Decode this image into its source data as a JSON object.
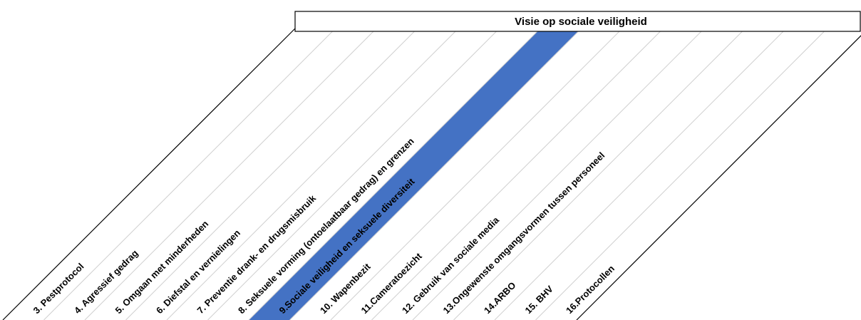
{
  "header": {
    "title": "Visie op sociale veiligheid"
  },
  "colors": {
    "highlight": "#4472c4",
    "line": "#000000",
    "gridline": "#d0d0d0"
  },
  "columns": [
    {
      "label": "3. Pestprotocol",
      "highlighted": false
    },
    {
      "label": "4. Agressief gedrag",
      "highlighted": false
    },
    {
      "label": "5. Omgaan met minderheden",
      "highlighted": false
    },
    {
      "label": "6. Diefstal en vernielingen",
      "highlighted": false
    },
    {
      "label": "7. Preventie drank- en drugsmisbruik",
      "highlighted": false
    },
    {
      "label": "8. Seksuele vorming (ontoelaatbaar gedrag) en grenzen",
      "highlighted": false
    },
    {
      "label": "9.Sociale veiligheid en seksuele diversiteit",
      "highlighted": true
    },
    {
      "label": "10. Wapenbezit",
      "highlighted": false
    },
    {
      "label": "11.Cameratoezicht",
      "highlighted": false
    },
    {
      "label": "12. Gebruik van sociale media",
      "highlighted": false
    },
    {
      "label": "13.Ongewenste omgangsvormen tussen personeel",
      "highlighted": false
    },
    {
      "label": "14.ARBO",
      "highlighted": false
    },
    {
      "label": "15. BHV",
      "highlighted": false
    },
    {
      "label": "16.Protocollen",
      "highlighted": false
    }
  ]
}
